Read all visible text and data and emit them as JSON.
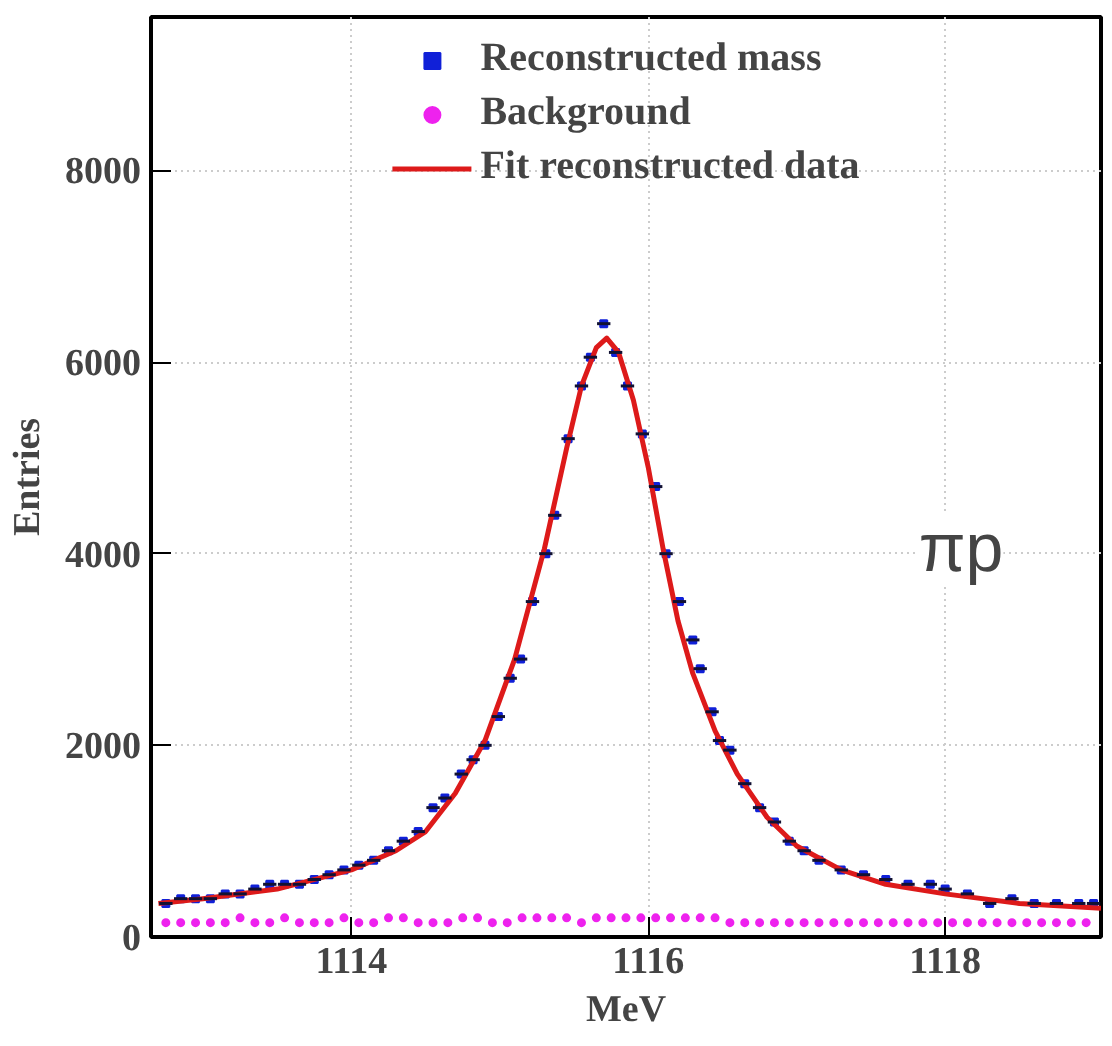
{
  "chart_data": {
    "type": "scatter",
    "xlabel": "MeV",
    "ylabel": "Entries",
    "xlim": [
      1112.65,
      1119.05
    ],
    "ylim": [
      0,
      9600
    ],
    "xticks": [
      1114,
      1116,
      1118
    ],
    "yticks": [
      0,
      2000,
      4000,
      6000,
      8000
    ],
    "grid": true,
    "legend": "top",
    "annotations": [
      "πp"
    ],
    "series": [
      {
        "name": "Reconstructed mass",
        "marker": "square",
        "color": "#1020d8",
        "x": [
          1112.75,
          1112.85,
          1112.95,
          1113.05,
          1113.15,
          1113.25,
          1113.35,
          1113.45,
          1113.55,
          1113.65,
          1113.75,
          1113.85,
          1113.95,
          1114.05,
          1114.15,
          1114.25,
          1114.35,
          1114.45,
          1114.55,
          1114.63,
          1114.74,
          1114.82,
          1114.9,
          1114.99,
          1115.07,
          1115.14,
          1115.22,
          1115.31,
          1115.37,
          1115.46,
          1115.55,
          1115.61,
          1115.7,
          1115.78,
          1115.86,
          1115.96,
          1116.05,
          1116.12,
          1116.21,
          1116.3,
          1116.35,
          1116.43,
          1116.48,
          1116.55,
          1116.65,
          1116.75,
          1116.85,
          1116.95,
          1117.05,
          1117.15,
          1117.3,
          1117.45,
          1117.6,
          1117.75,
          1117.9,
          1118.0,
          1118.15,
          1118.3,
          1118.45,
          1118.6,
          1118.75,
          1118.9,
          1119.0
        ],
        "values": [
          350,
          400,
          400,
          400,
          450,
          450,
          500,
          550,
          550,
          550,
          600,
          650,
          700,
          750,
          800,
          900,
          1000,
          1100,
          1350,
          1450,
          1700,
          1850,
          2000,
          2300,
          2700,
          2900,
          3500,
          4000,
          4400,
          5200,
          5750,
          6050,
          6400,
          6100,
          5750,
          5250,
          4700,
          4000,
          3500,
          3100,
          2800,
          2350,
          2050,
          1950,
          1600,
          1350,
          1200,
          1000,
          900,
          800,
          700,
          650,
          600,
          550,
          550,
          500,
          450,
          350,
          400,
          350,
          350,
          350,
          350
        ],
        "xerrors": [
          0.045,
          0.045,
          0.045,
          0.045,
          0.045,
          0.045,
          0.045,
          0.045,
          0.045,
          0.045,
          0.045,
          0.045,
          0.045,
          0.045,
          0.045,
          0.045,
          0.045,
          0.045,
          0.045,
          0.045,
          0.045,
          0.045,
          0.045,
          0.045,
          0.045,
          0.045,
          0.045,
          0.045,
          0.045,
          0.045,
          0.045,
          0.045,
          0.045,
          0.045,
          0.045,
          0.045,
          0.045,
          0.045,
          0.045,
          0.045,
          0.045,
          0.045,
          0.045,
          0.045,
          0.045,
          0.045,
          0.045,
          0.045,
          0.045,
          0.045,
          0.045,
          0.045,
          0.045,
          0.045,
          0.045,
          0.045,
          0.045,
          0.045,
          0.045,
          0.045,
          0.045,
          0.045,
          0.045
        ]
      },
      {
        "name": "Background",
        "marker": "circle",
        "color": "#ee22ee",
        "x": [
          1112.75,
          1112.85,
          1112.95,
          1113.05,
          1113.15,
          1113.25,
          1113.35,
          1113.45,
          1113.55,
          1113.65,
          1113.75,
          1113.85,
          1113.95,
          1114.05,
          1114.15,
          1114.25,
          1114.35,
          1114.45,
          1114.55,
          1114.65,
          1114.75,
          1114.85,
          1114.95,
          1115.05,
          1115.15,
          1115.25,
          1115.35,
          1115.45,
          1115.55,
          1115.65,
          1115.75,
          1115.85,
          1115.95,
          1116.05,
          1116.15,
          1116.25,
          1116.35,
          1116.45,
          1116.55,
          1116.65,
          1116.75,
          1116.85,
          1116.95,
          1117.05,
          1117.15,
          1117.25,
          1117.35,
          1117.45,
          1117.55,
          1117.65,
          1117.75,
          1117.85,
          1117.95,
          1118.05,
          1118.15,
          1118.25,
          1118.35,
          1118.45,
          1118.55,
          1118.65,
          1118.75,
          1118.85,
          1118.95
        ],
        "values": [
          150,
          150,
          150,
          150,
          150,
          200,
          150,
          150,
          200,
          150,
          150,
          150,
          200,
          150,
          150,
          200,
          200,
          150,
          150,
          150,
          200,
          200,
          150,
          150,
          200,
          200,
          200,
          200,
          150,
          200,
          200,
          200,
          200,
          200,
          200,
          200,
          200,
          200,
          150,
          150,
          150,
          150,
          150,
          150,
          150,
          150,
          150,
          150,
          150,
          150,
          150,
          150,
          150,
          150,
          150,
          150,
          150,
          150,
          150,
          150,
          150,
          150,
          150
        ]
      },
      {
        "name": "Fit reconstructed data",
        "type": "line",
        "line_style": "solid",
        "color": "#dd1a1a",
        "x": [
          1112.7,
          1113.0,
          1113.5,
          1114.0,
          1114.3,
          1114.5,
          1114.7,
          1114.9,
          1115.1,
          1115.3,
          1115.45,
          1115.55,
          1115.65,
          1115.72,
          1115.8,
          1115.9,
          1116.0,
          1116.1,
          1116.2,
          1116.3,
          1116.45,
          1116.6,
          1116.8,
          1117.0,
          1117.3,
          1117.6,
          1118.0,
          1118.5,
          1119.05
        ],
        "values": [
          350,
          400,
          500,
          700,
          900,
          1100,
          1500,
          2050,
          2900,
          4050,
          5100,
          5750,
          6150,
          6250,
          6100,
          5600,
          4900,
          4050,
          3300,
          2750,
          2150,
          1700,
          1250,
          950,
          700,
          550,
          450,
          350,
          300
        ]
      }
    ]
  }
}
